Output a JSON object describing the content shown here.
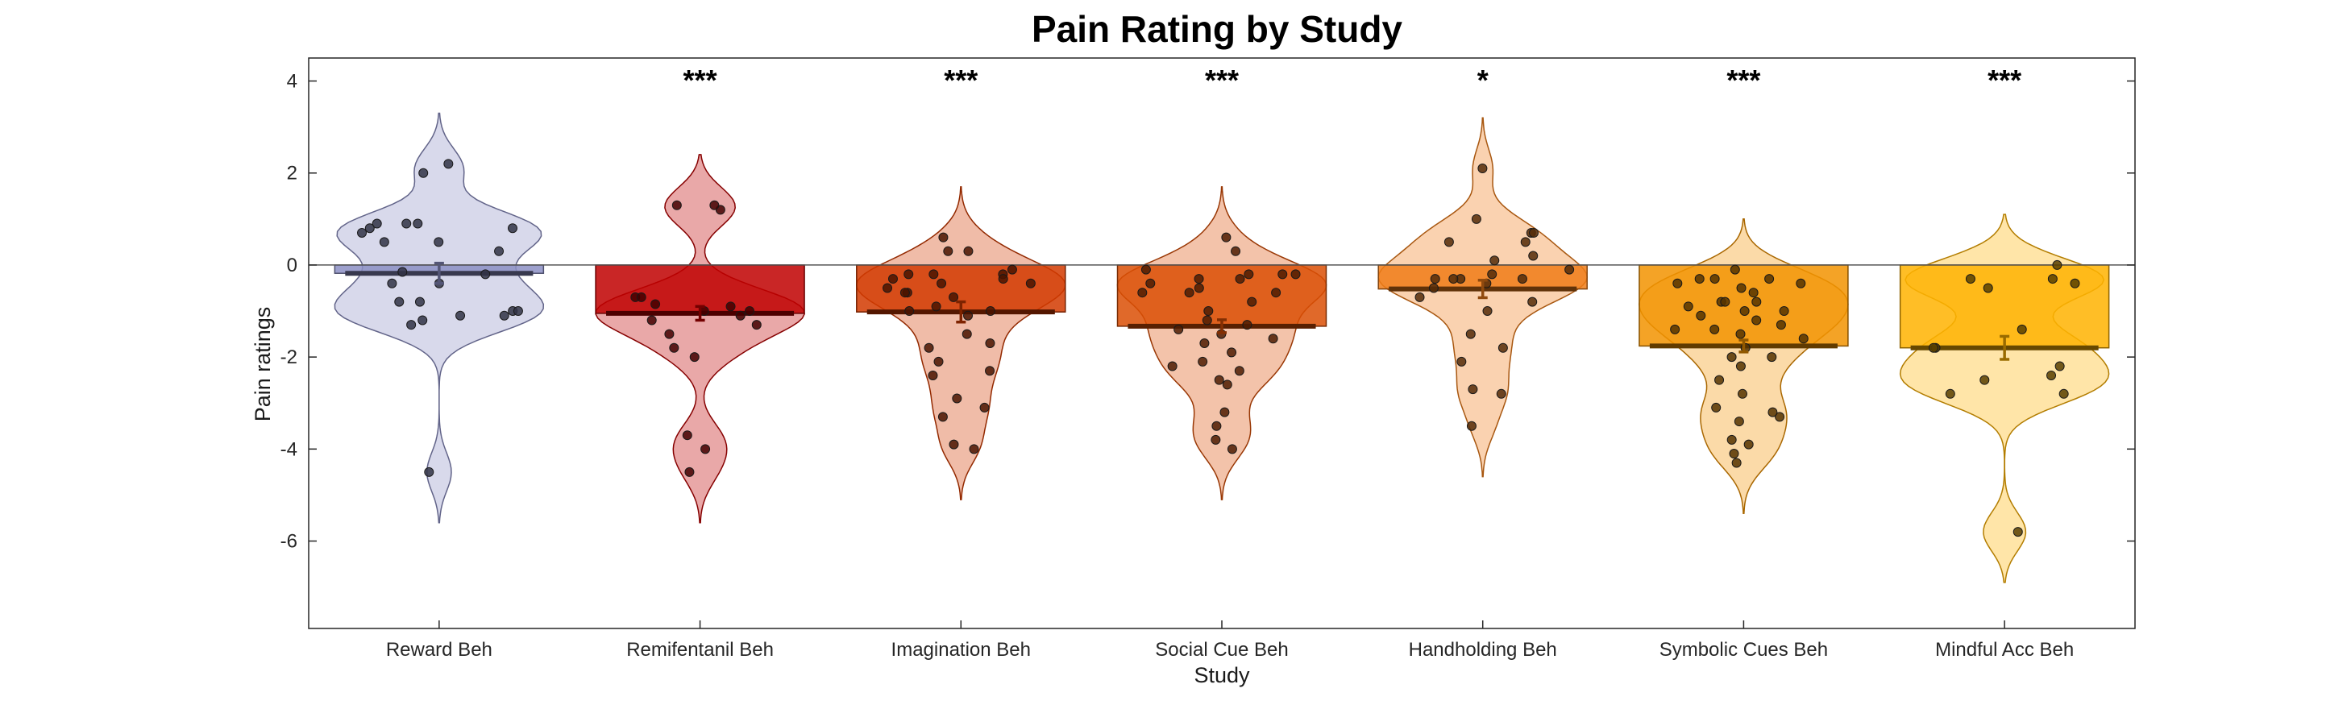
{
  "chart_data": {
    "type": "bar",
    "title": "Pain Rating by Study",
    "xlabel": "Study",
    "ylabel": "Pain ratings",
    "ylim": [
      -7.9,
      4.5
    ],
    "yticks": [
      4,
      2,
      0,
      -2,
      -4,
      -6
    ],
    "grid": false,
    "legend": "none",
    "categories": [
      "Reward Beh",
      "Remifentanil Beh",
      "Imagination Beh",
      "Social Cue Beh",
      "Handholding Beh",
      "Symbolic Cues Beh",
      "Mindful Acc Beh"
    ],
    "values": [
      -0.18,
      -1.05,
      -1.02,
      -1.33,
      -0.52,
      -1.76,
      -1.8
    ],
    "error": [
      0.22,
      0.15,
      0.22,
      0.14,
      0.19,
      0.13,
      0.25
    ],
    "significance": [
      "",
      "***",
      "***",
      "***",
      "*",
      "***",
      "***"
    ],
    "colors": [
      "#8c8fc4",
      "#bf0000",
      "#d23a00",
      "#db4f05",
      "#f07c17",
      "#f29300",
      "#ffb300"
    ],
    "points": [
      [
        0.3,
        0.8,
        0.7,
        -0.8,
        -1.0,
        2.0,
        0.9,
        -0.4,
        -1.1,
        -0.15,
        0.9,
        -1.0,
        -1.2,
        0.5,
        0.5,
        -0.8,
        0.8,
        2.2,
        -1.3,
        0.9,
        -4.5,
        -1.1,
        -0.4,
        -0.2
      ],
      [
        1.3,
        1.2,
        1.3,
        -0.7,
        -0.85,
        -0.7,
        -1.0,
        -1.2,
        -1.0,
        -0.9,
        -1.8,
        -2.0,
        -3.7,
        -4.0,
        -4.5,
        -1.1,
        -1.3,
        -1.5
      ],
      [
        0.3,
        -0.2,
        -0.4,
        -1.0,
        -1.5,
        -1.8,
        -2.1,
        -2.3,
        -2.9,
        -3.3,
        -3.9,
        -4.0,
        -3.1,
        -2.4,
        -1.7,
        0.6,
        0.3,
        -0.1,
        -0.5,
        -0.2,
        -0.3,
        -0.6,
        -0.3,
        -0.2,
        -0.4,
        -0.6,
        -0.7,
        -1.1,
        -1.0,
        -0.9
      ],
      [
        0.6,
        -0.2,
        -0.6,
        -1.2,
        -1.6,
        -2.2,
        -2.6,
        -2.3,
        -2.1,
        -3.2,
        -3.5,
        -3.8,
        -4.0,
        -2.5,
        -1.9,
        -0.3,
        -0.6,
        -0.5,
        -1.5,
        -1.7,
        -1.4,
        -0.2,
        -0.1,
        -0.3,
        -0.4,
        -0.8,
        -1.0,
        0.3,
        -0.6,
        -1.3,
        -0.2
      ],
      [
        0.2,
        0.1,
        -0.3,
        -0.7,
        -0.3,
        -0.1,
        0.7,
        1.0,
        0.5,
        0.7,
        2.1,
        0.5,
        -1.0,
        -1.8,
        -2.7,
        -3.5,
        -2.1,
        -2.8,
        -0.8,
        -0.3,
        -0.5,
        -0.4,
        -1.5,
        -0.2,
        -0.3
      ],
      [
        -0.4,
        -0.5,
        -0.8,
        -1.0,
        -1.2,
        -1.6,
        -2.0,
        -2.5,
        -3.1,
        -3.4,
        -3.9,
        -4.1,
        -4.3,
        -3.8,
        -3.3,
        -2.8,
        -2.0,
        -1.5,
        -0.3,
        -0.8,
        -1.1,
        -0.3,
        -0.6,
        -1.3,
        -0.8,
        -0.3,
        -1.4,
        -0.4,
        -0.9,
        -0.1,
        -1.0,
        -1.8,
        -2.2,
        -3.2,
        -1.4
      ],
      [
        -0.3,
        -0.5,
        -1.8,
        -2.5,
        -2.8,
        -0.4,
        -0.3,
        -5.8,
        -1.8,
        0.0,
        -1.4,
        -2.2,
        -2.8,
        -2.4
      ]
    ]
  }
}
